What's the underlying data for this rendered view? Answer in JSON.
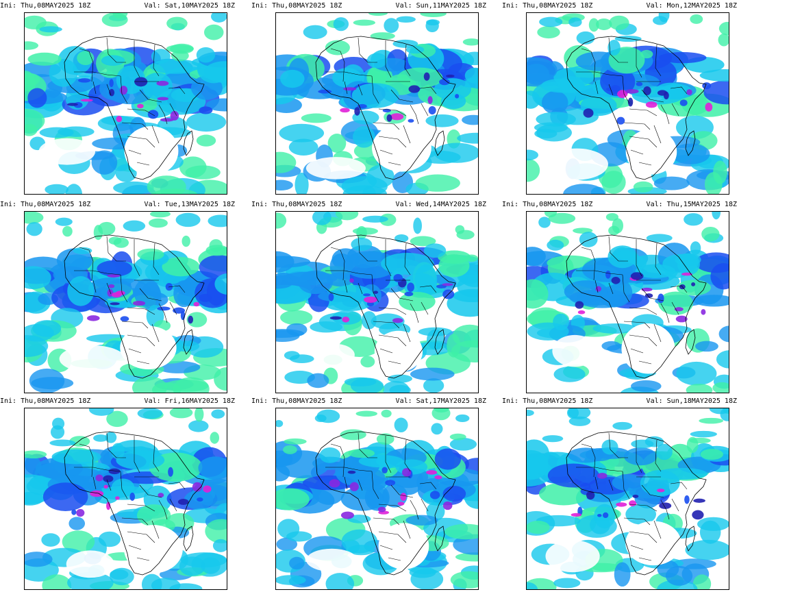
{
  "colors": {
    "light_green": "#3ef0a8",
    "aqua": "#16c8ec",
    "sky_blue": "#1896f0",
    "blue": "#1a4ef0",
    "dark_blue": "#2020b0",
    "purple": "#8a28e0",
    "magenta": "#e020d8",
    "coastline": "#000000"
  },
  "panels": [
    {
      "ini": "Ini: Thu,08MAY2025 18Z",
      "val": "Val: Sat,10MAY2025 18Z"
    },
    {
      "ini": "Ini: Thu,08MAY2025 18Z",
      "val": "Val: Sun,11MAY2025 18Z"
    },
    {
      "ini": "Ini: Thu,08MAY2025 18Z",
      "val": "Val: Mon,12MAY2025 18Z"
    },
    {
      "ini": "Ini: Thu,08MAY2025 18Z",
      "val": "Val: Tue,13MAY2025 18Z"
    },
    {
      "ini": "Ini: Thu,08MAY2025 18Z",
      "val": "Val: Wed,14MAY2025 18Z"
    },
    {
      "ini": "Ini: Thu,08MAY2025 18Z",
      "val": "Val: Thu,15MAY2025 18Z"
    },
    {
      "ini": "Ini: Thu,08MAY2025 18Z",
      "val": "Val: Fri,16MAY2025 18Z"
    },
    {
      "ini": "Ini: Thu,08MAY2025 18Z",
      "val": "Val: Sat,17MAY2025 18Z"
    },
    {
      "ini": "Ini: Thu,08MAY2025 18Z",
      "val": "Val: Sun,18MAY2025 18Z"
    }
  ]
}
